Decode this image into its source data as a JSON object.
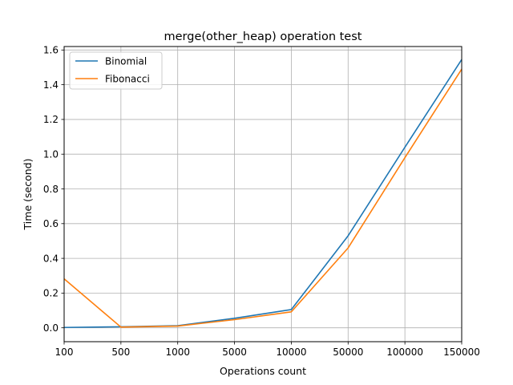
{
  "chart_data": {
    "type": "line",
    "title": "merge(other_heap) operation test",
    "xlabel": "Operations count",
    "ylabel": "Time (second)",
    "categories": [
      "100",
      "500",
      "1000",
      "5000",
      "10000",
      "50000",
      "100000",
      "150000"
    ],
    "ylim": [
      -0.08,
      1.62
    ],
    "yticks": [
      0.0,
      0.2,
      0.4,
      0.6,
      0.8,
      1.0,
      1.2,
      1.4,
      1.6
    ],
    "ytick_labels": [
      "0.0",
      "0.2",
      "0.4",
      "0.6",
      "0.8",
      "1.0",
      "1.2",
      "1.4",
      "1.6"
    ],
    "grid": true,
    "legend_position": "top-left",
    "series": [
      {
        "name": "Binomial",
        "color": "#1f77b4",
        "values": [
          0.002,
          0.006,
          0.012,
          0.055,
          0.105,
          0.53,
          1.04,
          1.545
        ]
      },
      {
        "name": "Fibonacci",
        "color": "#ff7f0e",
        "values": [
          0.282,
          0.004,
          0.01,
          0.047,
          0.092,
          0.46,
          0.98,
          1.49
        ]
      }
    ]
  }
}
